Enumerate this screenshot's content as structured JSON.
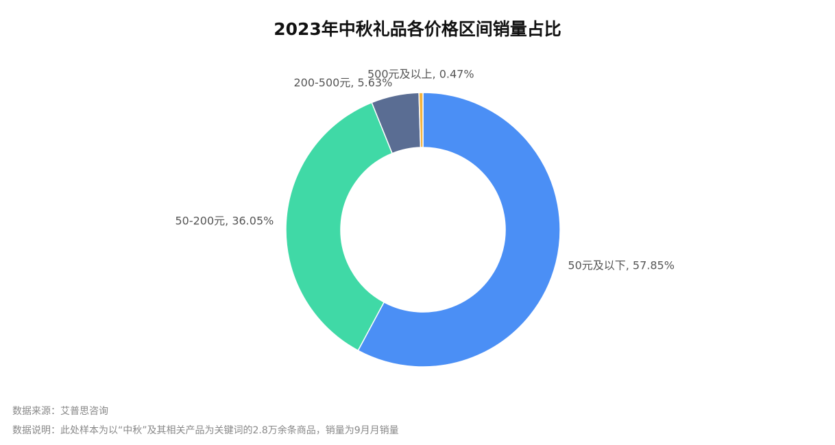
{
  "chart_data": {
    "type": "donut",
    "title": "2023年中秋礼品各价格区间销量占比",
    "values": [
      57.85,
      36.05,
      5.63,
      0.47
    ],
    "value_labels": [
      "50元及以下, 57.85%",
      "50-200元, 36.05%",
      "200-500元, 5.63%",
      "500元及以上, 0.47%"
    ],
    "colors": [
      "#4b8ff5",
      "#40d9a6",
      "#5a6d93",
      "#f4b43e"
    ]
  },
  "footer": {
    "source": "数据来源：艾普思咨询",
    "note": "数据说明：此处样本为以“中秋”及其相关产品为关键词的2.8万余条商品，销量为9月月销量"
  }
}
